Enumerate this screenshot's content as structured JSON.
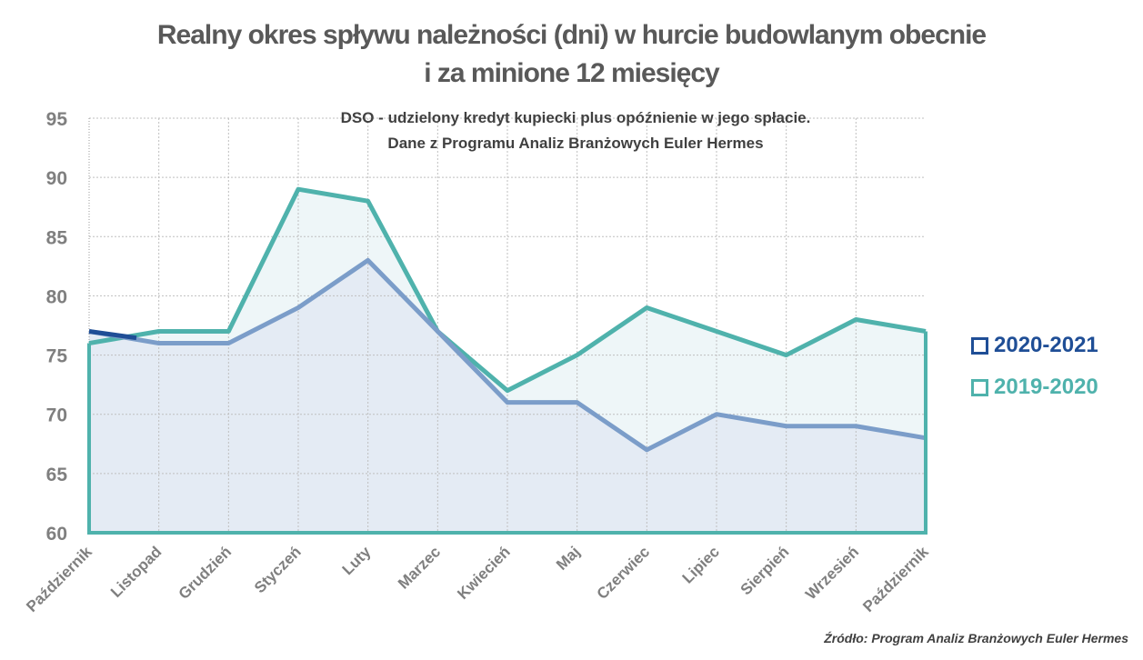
{
  "chart_data": {
    "type": "area",
    "title_line1": "Realny okres spływu należności (dni) w hurcie budowlanym obecnie",
    "title_line2": "i za minione 12 miesięcy",
    "subtitle_line1": "DSO - udzielony kredyt kupiecki plus opóźnienie w jego spłacie.",
    "subtitle_line2": "Dane z Programu Analiz Branżowych Euler Hermes",
    "categories": [
      "Październik",
      "Listopad",
      "Grudzień",
      "Styczeń",
      "Luty",
      "Marzec",
      "Kwiecień",
      "Maj",
      "Czerwiec",
      "Lipiec",
      "Sierpień",
      "Wrzesień",
      "Październik"
    ],
    "ylim": [
      60,
      95
    ],
    "yticks": [
      60,
      65,
      70,
      75,
      80,
      85,
      90,
      95
    ],
    "grid": true,
    "legend_position": "right",
    "series": [
      {
        "name": "2020-2021",
        "color": "#1f4e96",
        "line_color": "#7b9dc9",
        "fill": "#e4ebf4",
        "values": [
          77,
          76,
          76,
          79,
          83,
          77,
          71,
          71,
          67,
          70,
          69,
          69,
          68
        ]
      },
      {
        "name": "2019-2020",
        "color": "#4fb2ac",
        "line_color": "#4fb2ac",
        "fill": "#eef6f8",
        "values": [
          76,
          77,
          77,
          89,
          88,
          77,
          72,
          75,
          79,
          77,
          75,
          78,
          77
        ]
      }
    ],
    "source": "Źródło: Program Analiz Branżowych Euler Hermes"
  }
}
